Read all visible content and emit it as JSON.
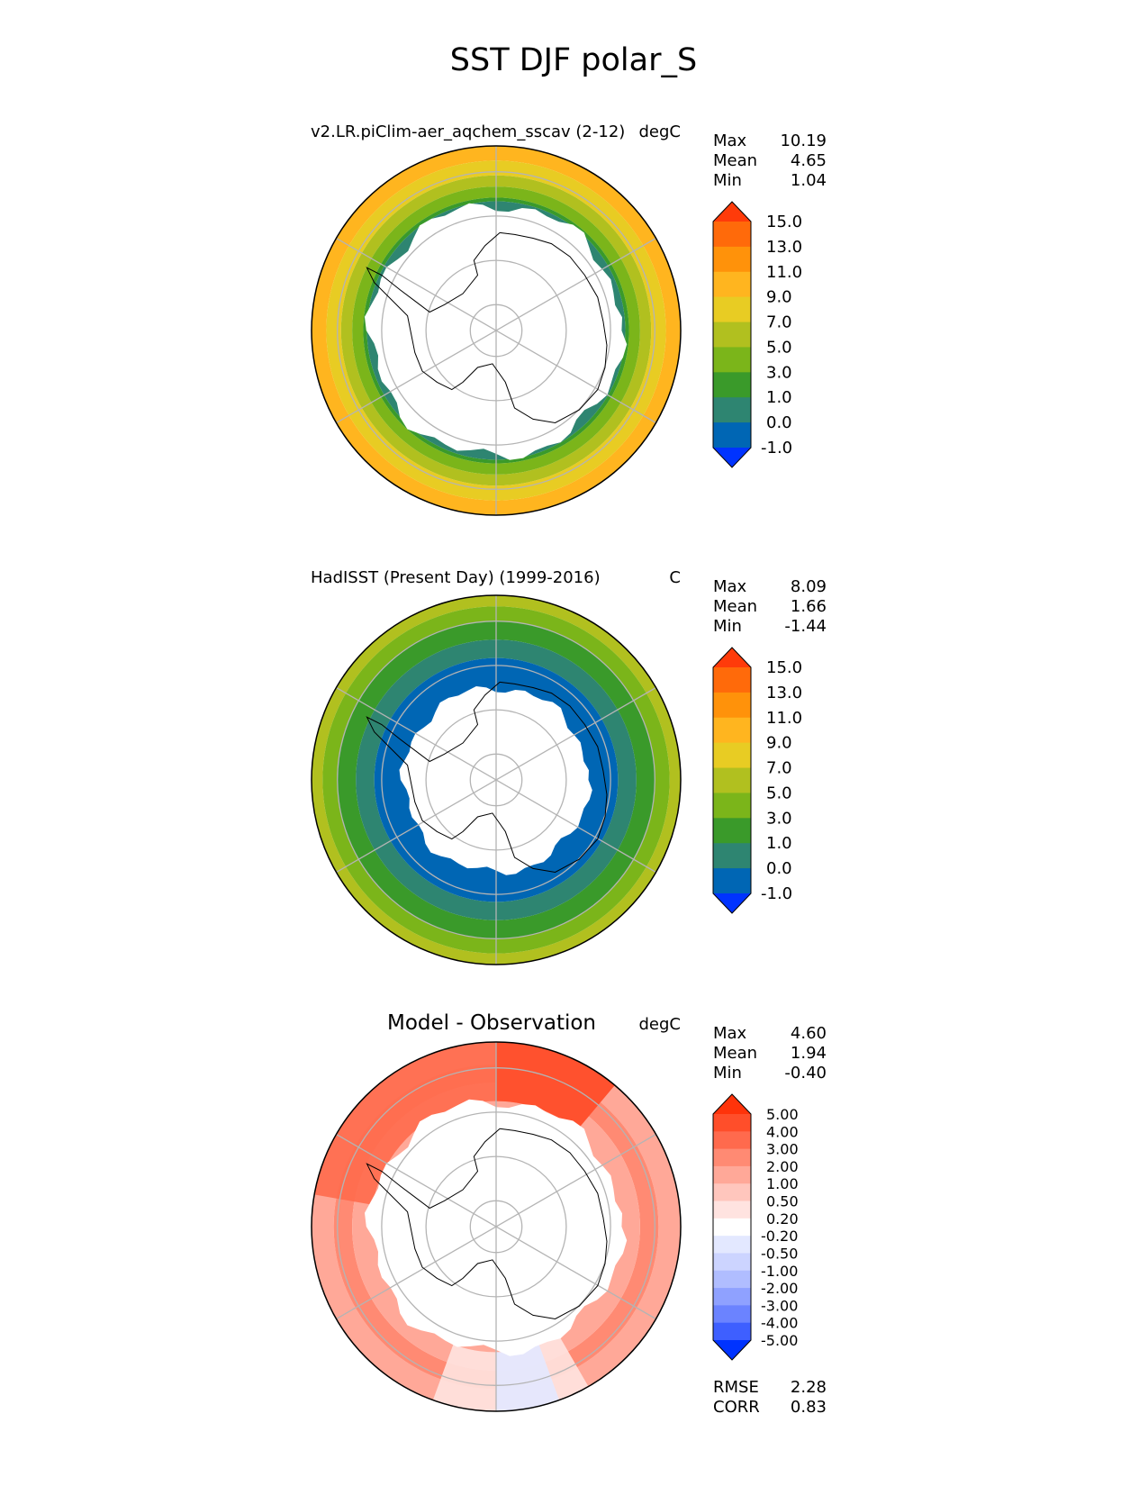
{
  "title": "SST DJF polar_S",
  "colors": {
    "test_obs_levels": [
      "#0033ff",
      "#0066b4",
      "#2e8571",
      "#3a9a2a",
      "#7bb51a",
      "#b1c01f",
      "#e8cc23",
      "#ffb51f",
      "#ff920a",
      "#ff6a0a",
      "#ff3b0a"
    ],
    "diff_levels": [
      "#0033ff",
      "#3e5fff",
      "#6b83ff",
      "#8fa1ff",
      "#b0bdff",
      "#ccd4ff",
      "#e3e8ff",
      "#ffffff",
      "#ffe3e0",
      "#ffc6bd",
      "#ffa898",
      "#ff8a73",
      "#ff6a4d",
      "#ff4e2a",
      "#ff330a"
    ],
    "ice": "#ffffff",
    "grid": "#b4b4b4",
    "coast": "#000000"
  },
  "chart_data": [
    {
      "type": "heatmap",
      "projection": "south-polar-stereographic",
      "panel": "test",
      "title_left": "v2.LR.piClim-aer_aqchem_sscav (2-12)",
      "title_right": "degC",
      "stats": [
        {
          "label": "Max",
          "value": "10.19"
        },
        {
          "label": "Mean",
          "value": "4.65"
        },
        {
          "label": "Min",
          "value": "1.04"
        }
      ],
      "colorbar": {
        "extend": "both",
        "ticks": [
          "-1.0",
          "0.0",
          "1.0",
          "3.0",
          "5.0",
          "7.0",
          "9.0",
          "11.0",
          "13.0",
          "15.0"
        ]
      },
      "rings": [
        {
          "outer": 1.0,
          "level": 7
        },
        {
          "outer": 0.92,
          "level": 6
        },
        {
          "outer": 0.84,
          "level": 5
        },
        {
          "outer": 0.78,
          "level": 4
        },
        {
          "outer": 0.72,
          "level": 3
        },
        {
          "outer": 0.7,
          "level": 2
        }
      ],
      "ice_edge": {
        "mean": 0.68,
        "wobble": 0.04
      },
      "regions": []
    },
    {
      "type": "heatmap",
      "projection": "south-polar-stereographic",
      "panel": "obs",
      "title_left": "HadISST (Present Day) (1999-2016)",
      "title_right": "C",
      "stats": [
        {
          "label": "Max",
          "value": "8.09"
        },
        {
          "label": "Mean",
          "value": "1.66"
        },
        {
          "label": "Min",
          "value": "-1.44"
        }
      ],
      "colorbar": {
        "extend": "both",
        "ticks": [
          "-1.0",
          "0.0",
          "1.0",
          "3.0",
          "5.0",
          "7.0",
          "9.0",
          "11.0",
          "13.0",
          "15.0"
        ]
      },
      "rings": [
        {
          "outer": 1.0,
          "level": 5
        },
        {
          "outer": 0.94,
          "level": 4
        },
        {
          "outer": 0.86,
          "level": 3
        },
        {
          "outer": 0.76,
          "level": 2
        },
        {
          "outer": 0.66,
          "level": 1
        }
      ],
      "ice_edge": {
        "mean": 0.5,
        "wobble": 0.03
      },
      "regions": []
    },
    {
      "type": "heatmap",
      "projection": "south-polar-stereographic",
      "panel": "diff",
      "title_left": "Model - Observation",
      "title_right": "degC",
      "stats": [
        {
          "label": "Max",
          "value": "4.60"
        },
        {
          "label": "Mean",
          "value": "1.94"
        },
        {
          "label": "Min",
          "value": "-0.40"
        }
      ],
      "colorbar": {
        "extend": "both",
        "ticks": [
          "-5.00",
          "-4.00",
          "-3.00",
          "-2.00",
          "-1.00",
          "-0.50",
          "-0.20",
          "0.20",
          "0.50",
          "1.00",
          "2.00",
          "3.00",
          "4.00",
          "5.00"
        ]
      },
      "rings": [
        {
          "outer": 1.0,
          "level": 10
        },
        {
          "outer": 0.88,
          "level": 11
        },
        {
          "outer": 0.78,
          "level": 10
        }
      ],
      "ice_edge": {
        "mean": 0.68,
        "wobble": 0.04
      },
      "regions": [
        {
          "a1": -80,
          "a2": 40,
          "level": 12
        },
        {
          "a1": 0,
          "a2": 40,
          "level": 13
        },
        {
          "a1": 150,
          "a2": 200,
          "level": 8
        },
        {
          "a1": 160,
          "a2": 180,
          "level": 6
        }
      ],
      "footer": [
        {
          "label": "RMSE",
          "value": "2.28"
        },
        {
          "label": "CORR",
          "value": "0.83"
        }
      ]
    }
  ]
}
